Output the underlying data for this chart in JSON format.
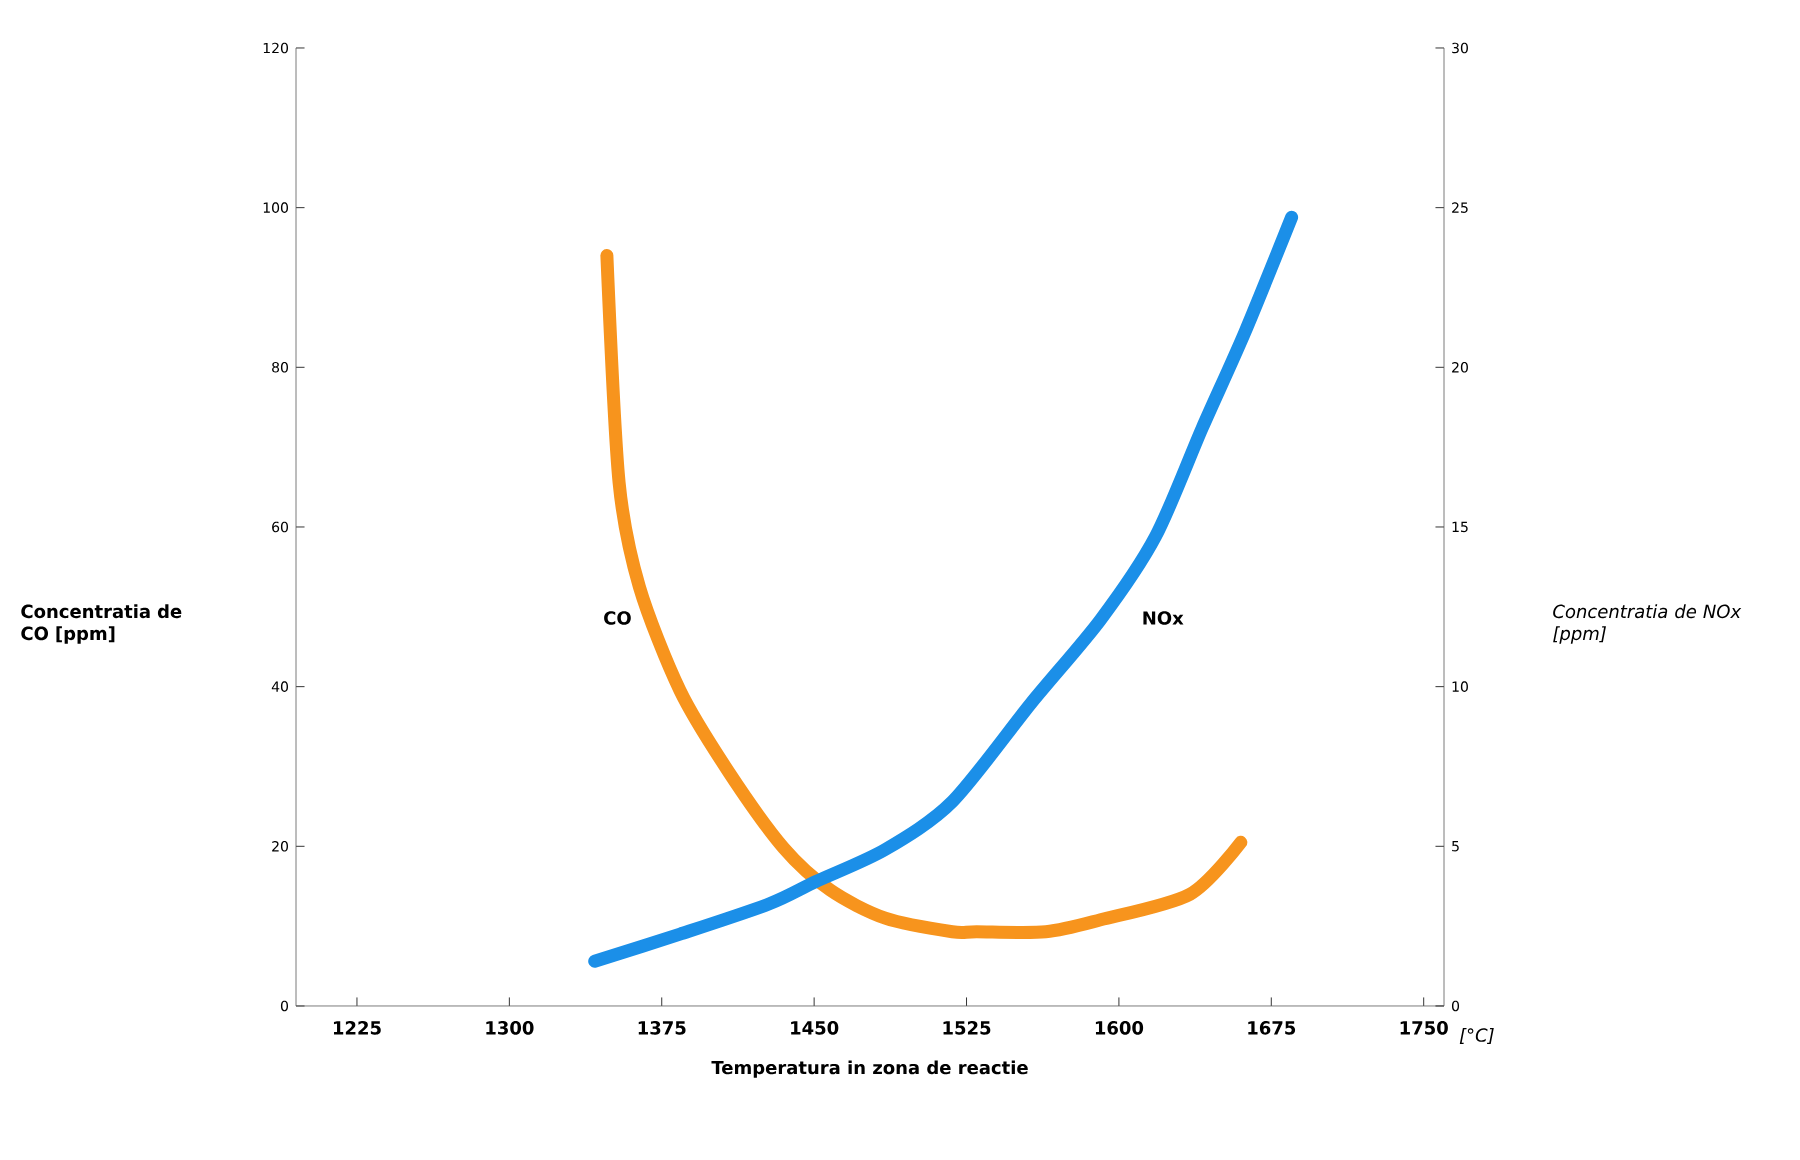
{
  "chart_data": {
    "type": "line",
    "xlabel": "Temperatura in zona de reactie",
    "ylabel": "Concentratia de CO [ppm]",
    "y2label": "Concentratia de NOx [ppm]",
    "annotations": [
      "[°C]"
    ],
    "xlim": [
      1195,
      1760
    ],
    "xticks": [
      1225,
      1300,
      1375,
      1450,
      1525,
      1600,
      1675,
      1750
    ],
    "ylim": [
      0,
      120
    ],
    "yticks": [
      0,
      20,
      40,
      60,
      80,
      100,
      120
    ],
    "y2lim": [
      0,
      30
    ],
    "y2ticks": [
      0,
      5,
      10,
      15,
      20,
      25,
      30
    ],
    "series": [
      {
        "name": "CO",
        "color": "#f7941d",
        "x": [
          1348,
          1354,
          1364,
          1384,
          1408,
          1435,
          1458,
          1485,
          1518,
          1530,
          1564,
          1591,
          1635,
          1660
        ],
        "values": [
          94,
          65.6,
          52.5,
          39.5,
          29.3,
          19.8,
          14.5,
          11,
          9.3,
          9.3,
          9.3,
          10.8,
          14,
          20.5
        ]
      },
      {
        "name": "NOx",
        "color": "#1b8fe8",
        "axis": "y2",
        "x": [
          1342,
          1384,
          1428,
          1451,
          1485,
          1518,
          1557,
          1591,
          1618,
          1641,
          1662,
          1685
        ],
        "values": [
          1.4,
          2.25,
          3.2,
          3.9,
          4.9,
          6.4,
          9.5,
          12.1,
          14.7,
          18.1,
          21.1,
          24.7
        ]
      }
    ]
  }
}
